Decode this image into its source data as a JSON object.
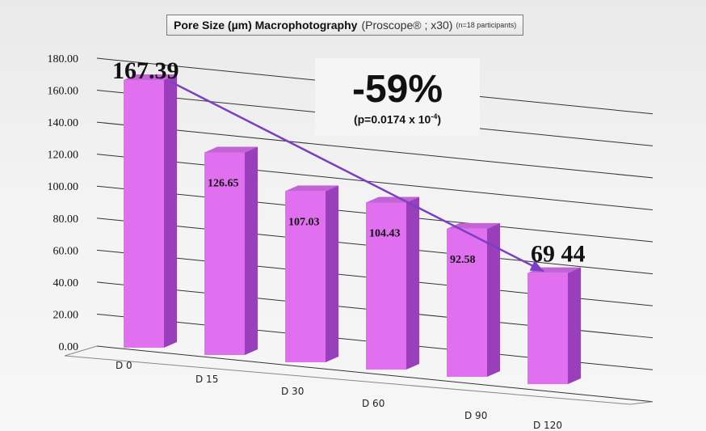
{
  "title": {
    "main": "Pore Size (µm) Macrophotography",
    "sub": "(Proscope® ; x30)",
    "note": "(n=18 participants)"
  },
  "annotation": {
    "percent": "-59%",
    "pvalue_text": "(p=0.0174 x 10",
    "pvalue_exp": "-4",
    "pvalue_close": ")"
  },
  "colors": {
    "bar_front": "#e070f0",
    "bar_side": "#9a3fbc",
    "bar_top": "#c263d6",
    "arrow": "#7a3fc2"
  },
  "chart_data": {
    "type": "bar",
    "categories": [
      "D 0",
      "D 15",
      "D 30",
      "D 60",
      "D 90",
      "D 120"
    ],
    "values": [
      167.39,
      126.65,
      107.03,
      104.43,
      92.58,
      69.44
    ],
    "data_labels": [
      "167.39",
      "126.65",
      "107.03",
      "104.43",
      "92.58",
      "69 44"
    ],
    "y_ticks": [
      "0.00",
      "20.00",
      "40.00",
      "60.00",
      "80.00",
      "100.00",
      "120.00",
      "140.00",
      "160.00",
      "180.00"
    ],
    "ylim": [
      0,
      180
    ],
    "grid": true,
    "title": "Pore Size (µm) Macrophotography (Proscope® ; x30) (n=18 participants)",
    "xlabel": "",
    "ylabel": ""
  }
}
